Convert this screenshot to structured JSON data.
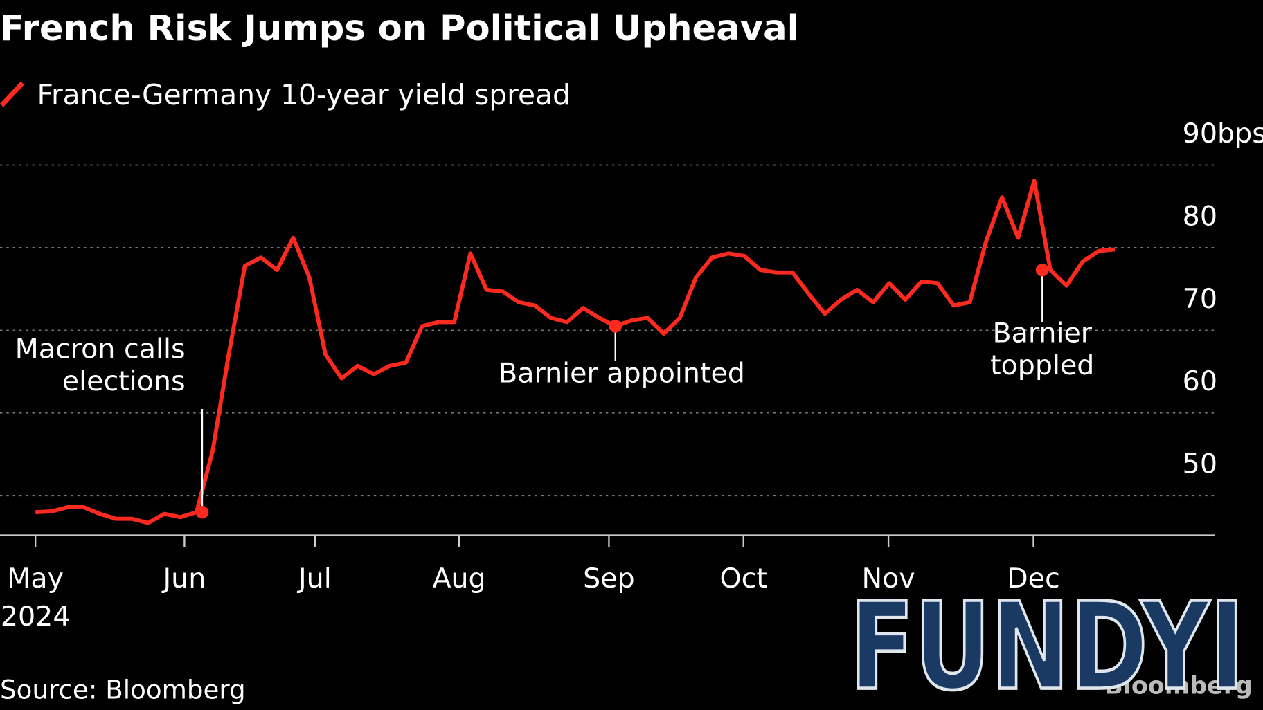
{
  "chart_data": {
    "type": "line",
    "title": "French Risk Jumps on Political Upheaval",
    "series": [
      {
        "name": "France-Germany 10-year yield spread",
        "color": "#ff2a1f",
        "values": [
          48.0,
          48.1,
          48.6,
          48.6,
          47.8,
          47.2,
          47.2,
          46.7,
          47.8,
          47.4,
          48.0,
          55.4,
          67.1,
          77.8,
          78.8,
          77.3,
          81.2,
          76.4,
          67.1,
          64.2,
          65.7,
          64.7,
          65.7,
          66.1,
          70.5,
          71.0,
          71.0,
          79.3,
          74.9,
          74.7,
          73.4,
          73.0,
          71.5,
          71.0,
          72.7,
          71.5,
          70.5,
          71.2,
          71.5,
          69.6,
          71.5,
          76.4,
          78.8,
          79.3,
          79.0,
          77.3,
          77.0,
          77.0,
          74.4,
          72.0,
          73.7,
          74.9,
          73.4,
          75.7,
          73.7,
          75.9,
          75.7,
          73.0,
          73.4,
          80.7,
          86.1,
          81.2,
          88.1,
          77.3,
          75.4,
          78.3,
          79.6,
          79.8
        ]
      }
    ],
    "xlim": [
      -2.2,
      73.2
    ],
    "xticks": [
      {
        "value": 0,
        "label": "May"
      },
      {
        "value": 9.25,
        "label": "Jun"
      },
      {
        "value": 17.35,
        "label": "Jul"
      },
      {
        "value": 26.3,
        "label": "Aug"
      },
      {
        "value": 35.6,
        "label": "Sep"
      },
      {
        "value": 43.95,
        "label": "Oct"
      },
      {
        "value": 52.95,
        "label": "Nov"
      },
      {
        "value": 61.95,
        "label": "Dec"
      }
    ],
    "x_year": "2024",
    "ylim": [
      45.2,
      90
    ],
    "yticks": [
      50,
      60,
      70,
      80,
      {
        "value": 90,
        "label": "90bps"
      }
    ],
    "grid": true,
    "annotations": [
      [
        "Macron calls",
        "elections"
      ],
      [
        "Barnier appointed"
      ],
      [
        "Barnier",
        "toppled"
      ]
    ],
    "source": "Source: Bloomberg",
    "logo": "Bloomberg",
    "watermark": "FUNDYI"
  }
}
